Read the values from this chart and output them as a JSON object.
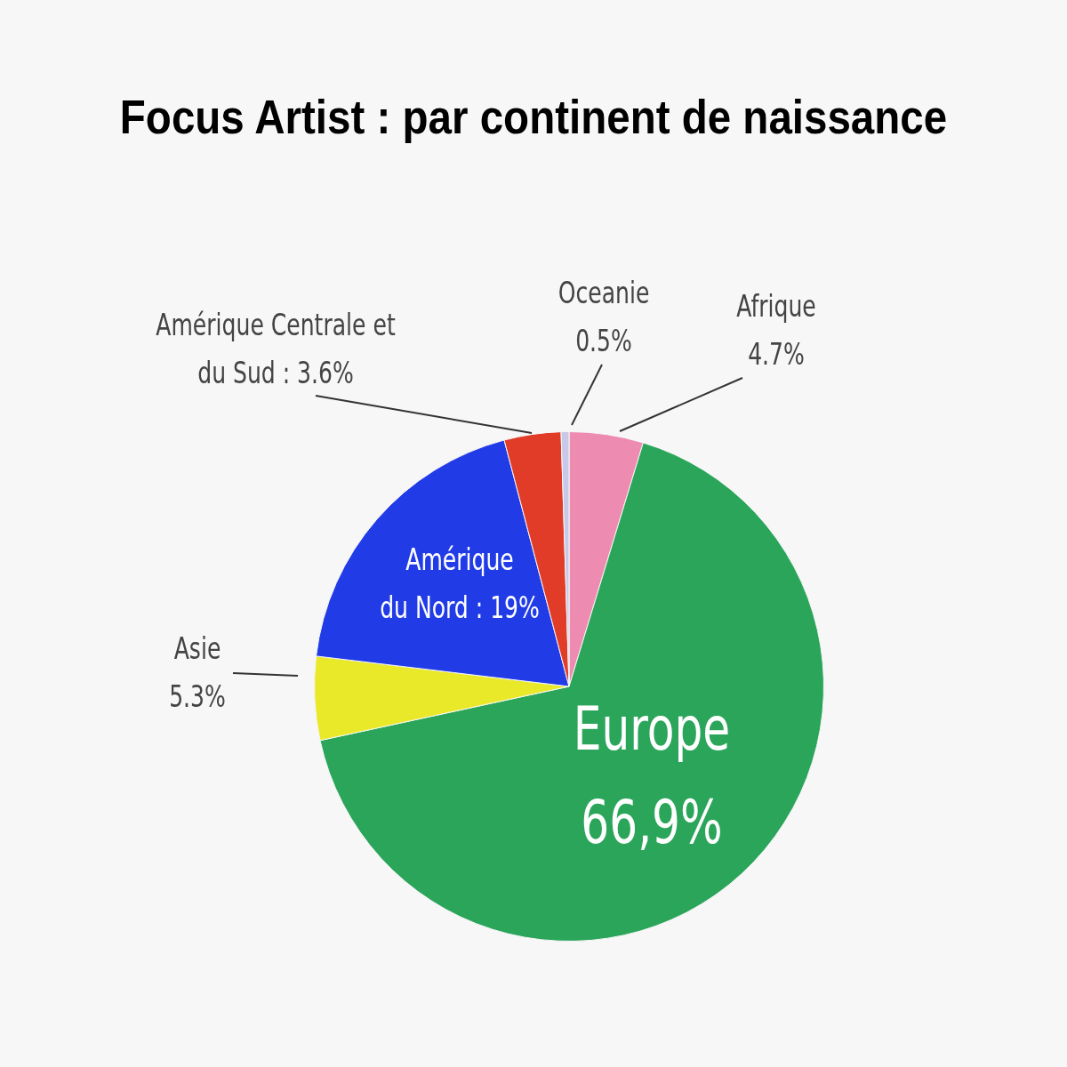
{
  "chart_data": {
    "type": "pie",
    "title": "Focus Artist : par continent de naissance",
    "categories": [
      "Afrique",
      "Europe",
      "Asie",
      "Amérique du Nord",
      "Amérique Centrale et du Sud",
      "Oceanie"
    ],
    "values": [
      4.7,
      66.9,
      5.3,
      19,
      3.6,
      0.5
    ],
    "value_labels": [
      "4.7%",
      "66,9%",
      "5.3%",
      "19%",
      "3.6%",
      "0.5%"
    ],
    "colors": [
      "#ee8bb0",
      "#2ba55a",
      "#e9e92a",
      "#213ce6",
      "#e03c28",
      "#c8c8e8"
    ],
    "legend": false
  }
}
